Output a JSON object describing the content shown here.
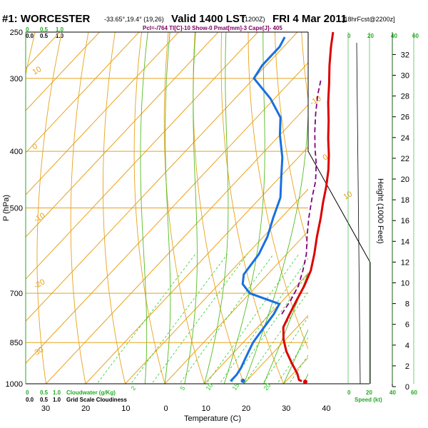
{
  "header": {
    "station": "#1: WORCESTER",
    "coords": "-33.65°,19.4° (19,26)",
    "valid": "Valid 1400 LST",
    "utc": "(1200Z)",
    "date": "FRI 4 Mar 2011",
    "forecast": "[18hrFcst@2200z]",
    "indices": "Pcl=-/764 Tl[C]-10 Show-0 Pmat[mm]-3 Cape[J]- 405"
  },
  "labels": {
    "cloud_water": "Cloudwater (g/Kg)",
    "grid_cloud": "Grid Scale Cloudiness",
    "cloud_scale_top": [
      "0.0",
      "0.5",
      "1.0"
    ],
    "cloud_scale_bottom": [
      "0.0",
      "0.5",
      "1.0"
    ],
    "cloud_scale_green": [
      "0",
      "0.5",
      "1.0"
    ],
    "speed_scale": [
      "0",
      "20",
      "40",
      "60"
    ],
    "speed_label": "Speed (kt)",
    "pressure_axis": "P (hPa)",
    "temperature_axis": "Temperature (C)",
    "height_axis": "Height (1000 Feet)"
  },
  "chart_data": {
    "type": "line",
    "pressure_ticks": [
      250,
      300,
      400,
      500,
      700,
      850,
      1000
    ],
    "pressure_tick_labels": [
      "250",
      "300",
      "400",
      "500",
      "700",
      "850",
      "1000"
    ],
    "x_tick_labels": [
      "30",
      "20",
      "10",
      "0",
      "10",
      "20",
      "30",
      "40"
    ],
    "x_tick_values": [
      -30,
      -20,
      -10,
      0,
      10,
      20,
      30,
      40
    ],
    "height_ticks": [
      0,
      2,
      4,
      6,
      8,
      10,
      12,
      14,
      16,
      18,
      20,
      22,
      24,
      26,
      28,
      30,
      32
    ],
    "isotherm_labels": [
      "10",
      "0",
      "-10",
      "-20",
      "-30",
      "-10",
      "0",
      "10"
    ],
    "mixing_ratio_labels": [
      "2",
      "5",
      "10",
      "15",
      "20"
    ],
    "series": [
      {
        "color": "#dd0000",
        "points": [
          [
            34,
            990
          ],
          [
            33,
            985
          ],
          [
            31,
            960
          ],
          [
            27,
            920
          ],
          [
            23,
            880
          ],
          [
            19.5,
            840
          ],
          [
            16.5,
            800
          ],
          [
            15,
            760
          ],
          [
            13.5,
            720
          ],
          [
            12,
            680
          ],
          [
            10,
            640
          ],
          [
            7,
            600
          ],
          [
            3.5,
            560
          ],
          [
            0,
            520
          ],
          [
            -3,
            490
          ],
          [
            -6,
            460
          ],
          [
            -9.5,
            430
          ],
          [
            -13,
            405
          ],
          [
            -17,
            380
          ],
          [
            -21,
            355
          ],
          [
            -25.5,
            330
          ],
          [
            -30,
            305
          ],
          [
            -34,
            285
          ],
          [
            -38,
            265
          ],
          [
            -41,
            250
          ]
        ]
      },
      {
        "color": "#1870e0",
        "points": [
          [
            16,
            990
          ],
          [
            16,
            965
          ],
          [
            15.5,
            940
          ],
          [
            14.5,
            910
          ],
          [
            13.5,
            880
          ],
          [
            12.5,
            850
          ],
          [
            12,
            820
          ],
          [
            11.5,
            790
          ],
          [
            11,
            760
          ],
          [
            10,
            730
          ],
          [
            0,
            700
          ],
          [
            -4,
            675
          ],
          [
            -6,
            650
          ],
          [
            -7,
            600
          ],
          [
            -9,
            560
          ],
          [
            -12,
            520
          ],
          [
            -15,
            480
          ],
          [
            -20,
            440
          ],
          [
            -24,
            410
          ],
          [
            -30,
            375
          ],
          [
            -34,
            350
          ],
          [
            -41,
            325
          ],
          [
            -50,
            300
          ],
          [
            -51,
            285
          ],
          [
            -51,
            265
          ],
          [
            -52,
            255
          ]
        ]
      },
      {
        "color": "#800080",
        "points": [
          [
            13,
            760
          ],
          [
            12,
            720
          ],
          [
            10.5,
            680
          ],
          [
            8,
            640
          ],
          [
            5,
            600
          ],
          [
            1,
            560
          ],
          [
            -3,
            520
          ],
          [
            -7,
            480
          ],
          [
            -10,
            450
          ],
          [
            -14,
            420
          ],
          [
            -18,
            395
          ],
          [
            -22,
            370
          ],
          [
            -26,
            345
          ],
          [
            -30,
            320
          ],
          [
            -33,
            300
          ]
        ]
      }
    ],
    "surface_points": [
      {
        "series": "temperature",
        "t": 35,
        "p": 992,
        "color": "#dd0000"
      },
      {
        "series": "dewpoint",
        "t": 19,
        "p": 988,
        "color": "#1870e0"
      }
    ]
  }
}
